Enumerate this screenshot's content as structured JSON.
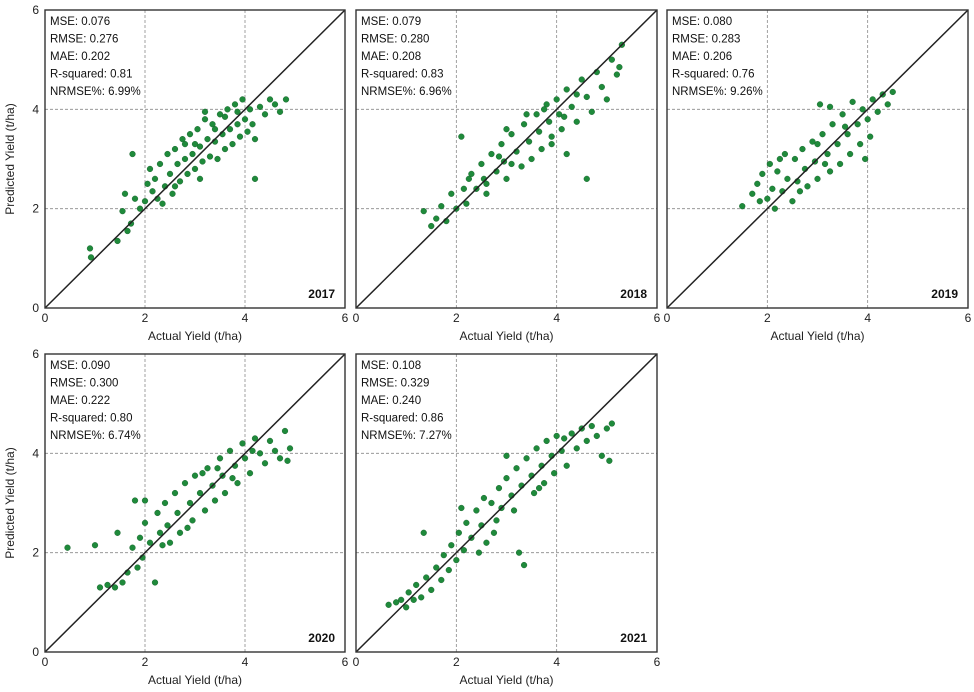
{
  "chart_data": [
    {
      "type": "scatter",
      "panel_label": "2017",
      "xlabel": "Actual Yield (t/ha)",
      "ylabel": "Predicted Yield (t/ha)",
      "xlim": [
        0,
        6
      ],
      "ylim": [
        0,
        6
      ],
      "xticks": [
        "0",
        "2",
        "4",
        "6"
      ],
      "yticks": [
        "0",
        "2",
        "4",
        "6"
      ],
      "grid": "dashed at 2 and 4",
      "reference_line": "1:1",
      "stats": [
        "MSE: 0.076",
        "RMSE: 0.276",
        "MAE: 0.202",
        "R-squared: 0.81",
        "NRMSE%: 6.99%"
      ],
      "point_color": "#1f8a3b",
      "points": [
        [
          0.9,
          1.2
        ],
        [
          0.92,
          1.02
        ],
        [
          1.45,
          1.35
        ],
        [
          1.65,
          1.55
        ],
        [
          1.72,
          1.7
        ],
        [
          1.75,
          3.1
        ],
        [
          1.55,
          1.95
        ],
        [
          1.6,
          2.3
        ],
        [
          1.8,
          2.2
        ],
        [
          1.9,
          2.0
        ],
        [
          2.0,
          2.15
        ],
        [
          2.05,
          2.5
        ],
        [
          2.1,
          2.8
        ],
        [
          2.15,
          2.35
        ],
        [
          2.2,
          2.6
        ],
        [
          2.25,
          2.2
        ],
        [
          2.3,
          2.9
        ],
        [
          2.4,
          2.45
        ],
        [
          2.45,
          3.1
        ],
        [
          2.5,
          2.7
        ],
        [
          2.55,
          2.3
        ],
        [
          2.6,
          3.2
        ],
        [
          2.65,
          2.9
        ],
        [
          2.7,
          2.55
        ],
        [
          2.75,
          3.4
        ],
        [
          2.8,
          3.0
        ],
        [
          2.85,
          2.7
        ],
        [
          2.9,
          3.5
        ],
        [
          2.95,
          3.1
        ],
        [
          3.0,
          2.8
        ],
        [
          3.05,
          3.6
        ],
        [
          3.1,
          3.25
        ],
        [
          3.15,
          2.95
        ],
        [
          3.2,
          3.8
        ],
        [
          3.25,
          3.4
        ],
        [
          3.3,
          3.05
        ],
        [
          3.35,
          3.7
        ],
        [
          3.4,
          3.35
        ],
        [
          3.45,
          3.0
        ],
        [
          3.5,
          3.9
        ],
        [
          3.55,
          3.5
        ],
        [
          3.6,
          3.2
        ],
        [
          3.65,
          4.0
        ],
        [
          3.7,
          3.6
        ],
        [
          3.75,
          3.3
        ],
        [
          3.8,
          4.1
        ],
        [
          3.85,
          3.7
        ],
        [
          3.9,
          3.45
        ],
        [
          3.95,
          4.2
        ],
        [
          4.0,
          3.8
        ],
        [
          4.05,
          3.55
        ],
        [
          4.1,
          4.0
        ],
        [
          4.15,
          3.7
        ],
        [
          4.2,
          3.4
        ],
        [
          4.3,
          4.05
        ],
        [
          4.4,
          3.9
        ],
        [
          4.5,
          4.2
        ],
        [
          4.6,
          4.1
        ],
        [
          4.7,
          3.95
        ],
        [
          4.82,
          4.2
        ],
        [
          4.2,
          2.6
        ],
        [
          3.2,
          3.95
        ],
        [
          2.35,
          2.1
        ],
        [
          2.6,
          2.45
        ],
        [
          3.0,
          3.3
        ],
        [
          3.4,
          3.6
        ],
        [
          3.6,
          3.85
        ],
        [
          3.85,
          3.95
        ],
        [
          3.1,
          2.6
        ],
        [
          2.8,
          3.3
        ]
      ]
    },
    {
      "type": "scatter",
      "panel_label": "2018",
      "xlabel": "Actual Yield (t/ha)",
      "ylabel": "",
      "xlim": [
        0,
        6
      ],
      "ylim": [
        0,
        6
      ],
      "xticks": [
        "0",
        "2",
        "4",
        "6"
      ],
      "yticks": [],
      "grid": "dashed at 2 and 4",
      "reference_line": "1:1",
      "stats": [
        "MSE: 0.079",
        "RMSE: 0.280",
        "MAE: 0.208",
        "R-squared: 0.83",
        "NRMSE%: 6.96%"
      ],
      "point_color": "#1f8a3b",
      "points": [
        [
          1.35,
          1.95
        ],
        [
          1.5,
          1.65
        ],
        [
          1.6,
          1.8
        ],
        [
          1.7,
          2.05
        ],
        [
          1.8,
          1.75
        ],
        [
          1.9,
          2.3
        ],
        [
          2.0,
          2.0
        ],
        [
          2.1,
          3.45
        ],
        [
          2.15,
          2.4
        ],
        [
          2.2,
          2.1
        ],
        [
          2.3,
          2.7
        ],
        [
          2.4,
          2.4
        ],
        [
          2.5,
          2.9
        ],
        [
          2.55,
          2.6
        ],
        [
          2.6,
          2.3
        ],
        [
          2.7,
          3.1
        ],
        [
          2.8,
          2.75
        ],
        [
          2.9,
          3.3
        ],
        [
          2.95,
          2.95
        ],
        [
          3.0,
          2.6
        ],
        [
          3.1,
          3.5
        ],
        [
          3.2,
          3.15
        ],
        [
          3.3,
          2.85
        ],
        [
          3.35,
          3.7
        ],
        [
          3.45,
          3.35
        ],
        [
          3.5,
          3.0
        ],
        [
          3.6,
          3.9
        ],
        [
          3.65,
          3.55
        ],
        [
          3.7,
          3.2
        ],
        [
          3.8,
          4.1
        ],
        [
          3.85,
          3.75
        ],
        [
          3.9,
          3.45
        ],
        [
          4.0,
          4.2
        ],
        [
          4.05,
          3.9
        ],
        [
          4.1,
          3.6
        ],
        [
          4.2,
          4.4
        ],
        [
          4.3,
          4.05
        ],
        [
          4.4,
          3.75
        ],
        [
          4.5,
          4.6
        ],
        [
          4.6,
          4.25
        ],
        [
          4.7,
          3.95
        ],
        [
          4.8,
          4.75
        ],
        [
          4.9,
          4.45
        ],
        [
          5.0,
          4.2
        ],
        [
          5.1,
          5.0
        ],
        [
          5.2,
          4.7
        ],
        [
          5.3,
          5.3
        ],
        [
          5.25,
          4.85
        ],
        [
          4.6,
          2.6
        ],
        [
          4.2,
          3.1
        ],
        [
          3.0,
          3.6
        ],
        [
          2.6,
          2.5
        ],
        [
          3.4,
          3.9
        ],
        [
          3.9,
          3.3
        ],
        [
          4.4,
          4.3
        ],
        [
          2.25,
          2.6
        ],
        [
          3.1,
          2.9
        ],
        [
          3.75,
          4.0
        ],
        [
          4.15,
          3.85
        ],
        [
          2.85,
          3.05
        ]
      ]
    },
    {
      "type": "scatter",
      "panel_label": "2019",
      "xlabel": "Actual Yield (t/ha)",
      "ylabel": "",
      "xlim": [
        0,
        6
      ],
      "ylim": [
        0,
        6
      ],
      "xticks": [
        "0",
        "2",
        "4",
        "6"
      ],
      "yticks": [],
      "grid": "dashed at 2 and 4",
      "reference_line": "1:1",
      "stats": [
        "MSE: 0.080",
        "RMSE: 0.283",
        "MAE: 0.206",
        "R-squared: 0.76",
        "NRMSE%: 9.26%"
      ],
      "point_color": "#1f8a3b",
      "points": [
        [
          1.5,
          2.05
        ],
        [
          1.7,
          2.3
        ],
        [
          1.8,
          2.5
        ],
        [
          1.85,
          2.15
        ],
        [
          1.9,
          2.7
        ],
        [
          2.0,
          2.2
        ],
        [
          2.05,
          2.9
        ],
        [
          2.1,
          2.4
        ],
        [
          2.15,
          2.0
        ],
        [
          2.2,
          2.75
        ],
        [
          2.3,
          2.35
        ],
        [
          2.35,
          3.1
        ],
        [
          2.4,
          2.6
        ],
        [
          2.5,
          2.15
        ],
        [
          2.55,
          3.0
        ],
        [
          2.6,
          2.55
        ],
        [
          2.7,
          3.2
        ],
        [
          2.75,
          2.8
        ],
        [
          2.8,
          2.45
        ],
        [
          2.9,
          3.35
        ],
        [
          2.95,
          2.95
        ],
        [
          3.0,
          2.6
        ],
        [
          3.05,
          4.1
        ],
        [
          3.1,
          3.5
        ],
        [
          3.2,
          3.1
        ],
        [
          3.25,
          2.75
        ],
        [
          3.3,
          3.7
        ],
        [
          3.4,
          3.3
        ],
        [
          3.45,
          2.9
        ],
        [
          3.5,
          3.9
        ],
        [
          3.6,
          3.5
        ],
        [
          3.65,
          3.1
        ],
        [
          3.7,
          4.15
        ],
        [
          3.8,
          3.7
        ],
        [
          3.85,
          3.3
        ],
        [
          3.9,
          4.0
        ],
        [
          4.0,
          3.8
        ],
        [
          4.05,
          3.45
        ],
        [
          4.1,
          4.2
        ],
        [
          4.2,
          3.95
        ],
        [
          4.3,
          4.3
        ],
        [
          4.4,
          4.1
        ],
        [
          4.5,
          4.35
        ],
        [
          3.25,
          4.05
        ],
        [
          2.25,
          3.0
        ],
        [
          3.0,
          3.3
        ],
        [
          3.55,
          3.65
        ],
        [
          3.95,
          3.0
        ],
        [
          2.65,
          2.35
        ],
        [
          3.15,
          2.9
        ]
      ]
    },
    {
      "type": "scatter",
      "panel_label": "2020",
      "xlabel": "Actual Yield (t/ha)",
      "ylabel": "Predicted Yield (t/ha)",
      "xlim": [
        0,
        6
      ],
      "ylim": [
        0,
        6
      ],
      "xticks": [
        "0",
        "2",
        "4",
        "6"
      ],
      "yticks": [
        "0",
        "2",
        "4",
        "6"
      ],
      "grid": "dashed at 2 and 4",
      "reference_line": "1:1",
      "stats": [
        "MSE: 0.090",
        "RMSE: 0.300",
        "MAE: 0.222",
        "R-squared: 0.80",
        "NRMSE%: 6.74%"
      ],
      "point_color": "#1f8a3b",
      "points": [
        [
          0.45,
          2.1
        ],
        [
          1.0,
          2.15
        ],
        [
          1.1,
          1.3
        ],
        [
          1.25,
          1.35
        ],
        [
          1.4,
          1.3
        ],
        [
          1.45,
          2.4
        ],
        [
          1.55,
          1.4
        ],
        [
          1.65,
          1.6
        ],
        [
          1.75,
          2.1
        ],
        [
          1.8,
          3.05
        ],
        [
          1.85,
          1.7
        ],
        [
          1.9,
          2.3
        ],
        [
          1.95,
          1.9
        ],
        [
          2.0,
          2.6
        ],
        [
          2.1,
          2.2
        ],
        [
          2.2,
          1.4
        ],
        [
          2.25,
          2.8
        ],
        [
          2.3,
          2.4
        ],
        [
          2.4,
          3.0
        ],
        [
          2.45,
          2.55
        ],
        [
          2.5,
          2.2
        ],
        [
          2.6,
          3.2
        ],
        [
          2.65,
          2.8
        ],
        [
          2.7,
          2.4
        ],
        [
          2.8,
          3.4
        ],
        [
          2.9,
          3.0
        ],
        [
          2.95,
          2.65
        ],
        [
          3.0,
          3.55
        ],
        [
          3.1,
          3.2
        ],
        [
          3.2,
          2.85
        ],
        [
          3.25,
          3.7
        ],
        [
          3.35,
          3.35
        ],
        [
          3.4,
          3.05
        ],
        [
          3.5,
          3.9
        ],
        [
          3.55,
          3.55
        ],
        [
          3.6,
          3.2
        ],
        [
          3.7,
          4.05
        ],
        [
          3.8,
          3.75
        ],
        [
          3.85,
          3.4
        ],
        [
          3.95,
          4.2
        ],
        [
          4.0,
          3.9
        ],
        [
          4.1,
          3.6
        ],
        [
          4.2,
          4.3
        ],
        [
          4.3,
          4.0
        ],
        [
          4.4,
          3.8
        ],
        [
          4.5,
          4.25
        ],
        [
          4.6,
          4.05
        ],
        [
          4.7,
          3.9
        ],
        [
          4.8,
          4.45
        ],
        [
          4.9,
          4.1
        ],
        [
          4.85,
          3.85
        ],
        [
          2.0,
          3.05
        ],
        [
          2.35,
          2.15
        ],
        [
          3.15,
          3.6
        ],
        [
          3.45,
          3.7
        ],
        [
          3.75,
          3.5
        ],
        [
          4.15,
          4.05
        ],
        [
          2.85,
          2.5
        ]
      ]
    },
    {
      "type": "scatter",
      "panel_label": "2021",
      "xlabel": "Actual Yield (t/ha)",
      "ylabel": "",
      "xlim": [
        0,
        6
      ],
      "ylim": [
        0,
        6
      ],
      "xticks": [
        "0",
        "2",
        "4",
        "6"
      ],
      "yticks": [],
      "grid": "dashed at 2 and 4",
      "reference_line": "1:1",
      "stats": [
        "MSE: 0.108",
        "RMSE: 0.329",
        "MAE: 0.240",
        "R-squared: 0.86",
        "NRMSE%: 7.27%"
      ],
      "point_color": "#1f8a3b",
      "points": [
        [
          0.65,
          0.95
        ],
        [
          0.8,
          1.0
        ],
        [
          0.9,
          1.05
        ],
        [
          1.0,
          0.9
        ],
        [
          1.05,
          1.2
        ],
        [
          1.15,
          1.05
        ],
        [
          1.2,
          1.35
        ],
        [
          1.3,
          1.1
        ],
        [
          1.35,
          2.4
        ],
        [
          1.4,
          1.5
        ],
        [
          1.5,
          1.25
        ],
        [
          1.6,
          1.7
        ],
        [
          1.7,
          1.45
        ],
        [
          1.75,
          1.95
        ],
        [
          1.85,
          1.65
        ],
        [
          1.9,
          2.15
        ],
        [
          2.0,
          1.85
        ],
        [
          2.05,
          2.4
        ],
        [
          2.1,
          2.9
        ],
        [
          2.15,
          2.05
        ],
        [
          2.2,
          2.6
        ],
        [
          2.3,
          2.3
        ],
        [
          2.4,
          2.85
        ],
        [
          2.5,
          2.55
        ],
        [
          2.55,
          3.1
        ],
        [
          2.6,
          2.2
        ],
        [
          2.7,
          3.0
        ],
        [
          2.8,
          2.65
        ],
        [
          2.85,
          3.3
        ],
        [
          2.9,
          2.9
        ],
        [
          3.0,
          3.5
        ],
        [
          3.1,
          3.15
        ],
        [
          3.15,
          2.85
        ],
        [
          3.2,
          3.7
        ],
        [
          3.3,
          3.35
        ],
        [
          3.35,
          1.75
        ],
        [
          3.4,
          3.9
        ],
        [
          3.5,
          3.55
        ],
        [
          3.55,
          3.2
        ],
        [
          3.6,
          4.1
        ],
        [
          3.7,
          3.75
        ],
        [
          3.75,
          3.4
        ],
        [
          3.8,
          4.25
        ],
        [
          3.9,
          3.95
        ],
        [
          3.95,
          3.6
        ],
        [
          4.0,
          4.35
        ],
        [
          4.1,
          4.05
        ],
        [
          4.2,
          3.75
        ],
        [
          4.3,
          4.4
        ],
        [
          4.4,
          4.1
        ],
        [
          4.5,
          4.5
        ],
        [
          4.6,
          4.25
        ],
        [
          4.7,
          4.55
        ],
        [
          4.8,
          4.35
        ],
        [
          4.9,
          3.95
        ],
        [
          5.0,
          4.5
        ],
        [
          5.1,
          4.6
        ],
        [
          5.05,
          3.85
        ],
        [
          3.25,
          2.0
        ],
        [
          2.45,
          2.0
        ],
        [
          3.0,
          3.95
        ],
        [
          3.65,
          3.3
        ],
        [
          4.15,
          4.3
        ],
        [
          2.75,
          2.4
        ]
      ]
    }
  ]
}
